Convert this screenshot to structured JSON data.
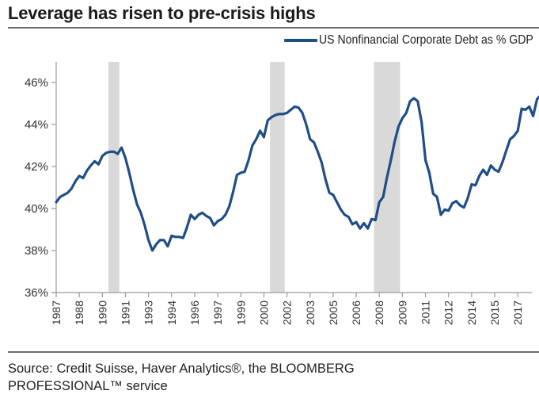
{
  "header": {
    "title": "Leverage has risen to pre-crisis highs"
  },
  "footer": {
    "source_line1": "Source: Credit Suisse, Haver Analytics®, the BLOOMBERG",
    "source_line2": "PROFESSIONAL™ service"
  },
  "colors": {
    "series": "#1f4e87",
    "recession": "#d9d9d9",
    "axis": "#9a9a9a"
  },
  "chart_data": {
    "type": "line",
    "title": "Leverage has risen to pre-crisis highs",
    "xlabel": "",
    "ylabel": "",
    "ylim": [
      36,
      47
    ],
    "yticks": [
      36,
      38,
      40,
      42,
      44,
      46
    ],
    "ytick_labels": [
      "36%",
      "38%",
      "40%",
      "42%",
      "44%",
      "46%"
    ],
    "xtick_labels": [
      "1987",
      "1988",
      "1990",
      "1991",
      "1993",
      "1994",
      "1996",
      "1997",
      "1999",
      "2000",
      "2002",
      "2003",
      "2005",
      "2006",
      "2008",
      "2009",
      "2011",
      "2012",
      "2014",
      "2015",
      "2017"
    ],
    "xtick_quarter_step": 6,
    "x_start": "1987Q1",
    "grid": false,
    "legend": {
      "position": "top-right",
      "entries": [
        "US Nonfinancial Corporate Debt as % GDP"
      ]
    },
    "recession_periods": [
      {
        "start": "1990Q3",
        "end": "1991Q1"
      },
      {
        "start": "2001Q1",
        "end": "2001Q4"
      },
      {
        "start": "2007Q4",
        "end": "2009Q2"
      }
    ],
    "series": [
      {
        "name": "US Nonfinancial Corporate Debt as % GDP",
        "frequency": "quarterly",
        "start": "1987Q1",
        "values": [
          40.3,
          40.55,
          40.65,
          40.75,
          40.95,
          41.3,
          41.55,
          41.45,
          41.8,
          42.05,
          42.25,
          42.1,
          42.5,
          42.65,
          42.7,
          42.7,
          42.6,
          42.9,
          42.4,
          41.7,
          40.9,
          40.2,
          39.8,
          39.2,
          38.5,
          38.0,
          38.3,
          38.5,
          38.5,
          38.2,
          38.7,
          38.65,
          38.65,
          38.6,
          39.1,
          39.7,
          39.5,
          39.7,
          39.8,
          39.65,
          39.55,
          39.2,
          39.4,
          39.5,
          39.7,
          40.1,
          40.8,
          41.6,
          41.7,
          41.75,
          42.3,
          43.0,
          43.3,
          43.7,
          43.4,
          44.2,
          44.35,
          44.45,
          44.5,
          44.5,
          44.55,
          44.7,
          44.85,
          44.8,
          44.55,
          44.0,
          43.3,
          43.15,
          42.7,
          42.2,
          41.4,
          40.75,
          40.65,
          40.3,
          39.95,
          39.7,
          39.6,
          39.25,
          39.35,
          39.05,
          39.3,
          39.05,
          39.5,
          39.45,
          40.3,
          40.55,
          41.5,
          42.3,
          43.2,
          43.9,
          44.3,
          44.55,
          45.1,
          45.25,
          45.1,
          44.1,
          42.3,
          41.7,
          40.7,
          40.55,
          39.7,
          39.95,
          39.9,
          40.25,
          40.35,
          40.15,
          40.05,
          40.5,
          41.15,
          41.1,
          41.55,
          41.85,
          41.6,
          42.05,
          41.85,
          41.75,
          42.2,
          42.75,
          43.3,
          43.45,
          43.7,
          44.75,
          44.7,
          44.85,
          44.4,
          45.2,
          45.4,
          45.5,
          45.4,
          45.3
        ]
      }
    ]
  }
}
